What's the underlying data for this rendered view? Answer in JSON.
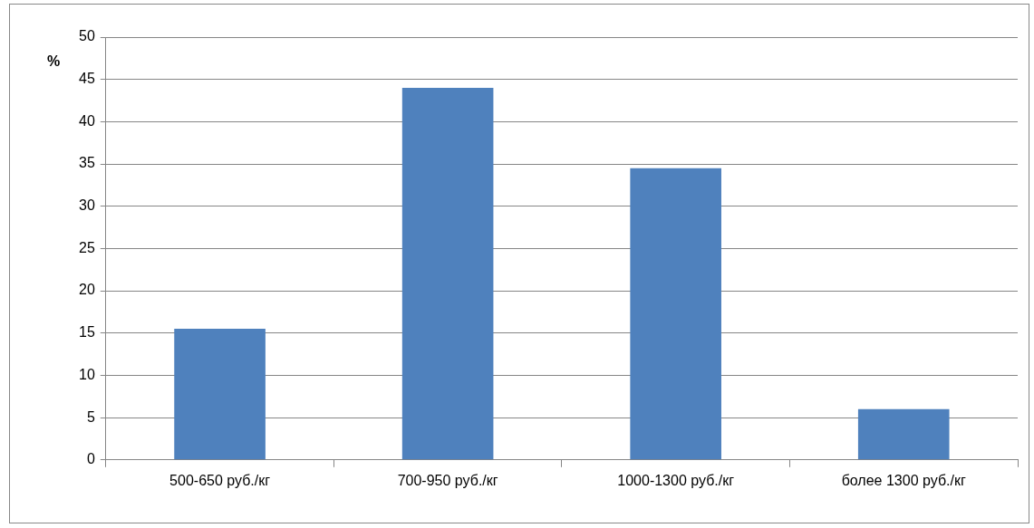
{
  "chart_data": {
    "type": "bar",
    "ylabel": "%",
    "categories": [
      "500-650 руб./кг",
      "700-950 руб./кг",
      "1000-1300 руб./кг",
      "более 1300 руб./кг"
    ],
    "values": [
      15.5,
      44,
      34.5,
      6
    ],
    "color": "#4f81bd",
    "ylim": [
      0,
      50
    ],
    "yticks": [
      0,
      5,
      10,
      15,
      20,
      25,
      30,
      35,
      40,
      45,
      50
    ],
    "grid": "y",
    "legend": false
  }
}
